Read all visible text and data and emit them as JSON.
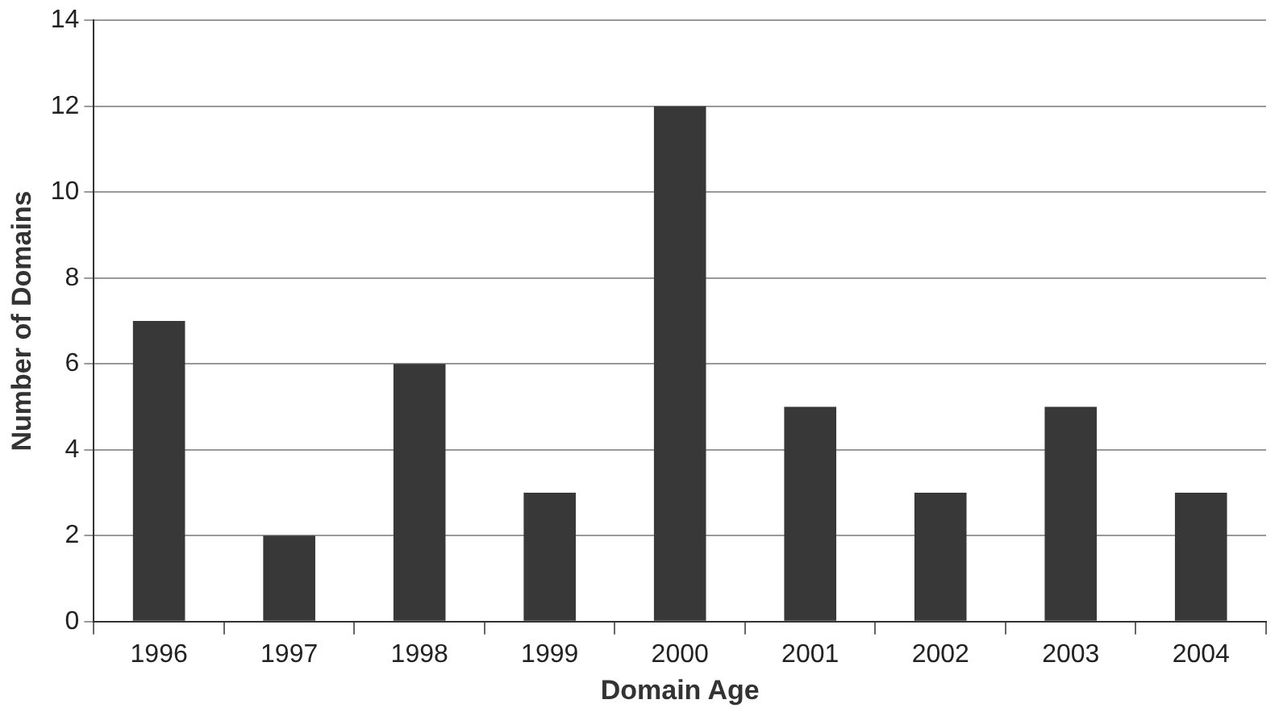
{
  "chart_data": {
    "type": "bar",
    "xlabel": "Domain Age",
    "ylabel": "Number of Domains",
    "categories": [
      "1996",
      "1997",
      "1998",
      "1999",
      "2000",
      "2001",
      "2002",
      "2003",
      "2004"
    ],
    "values": [
      7,
      2,
      6,
      3,
      12,
      5,
      3,
      5,
      3
    ],
    "color": "#383838",
    "ylim": [
      0,
      14
    ],
    "yticks": [
      0,
      2,
      4,
      6,
      8,
      10,
      12,
      14
    ],
    "grid": "y",
    "legend": false
  }
}
